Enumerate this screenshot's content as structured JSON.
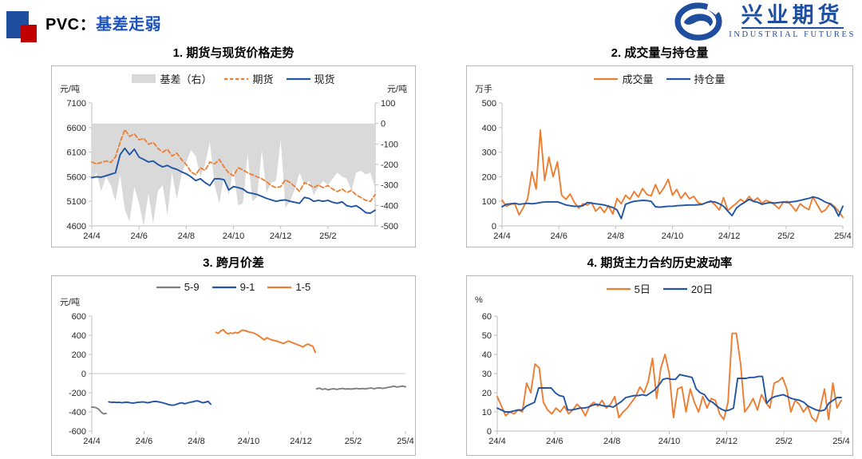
{
  "header": {
    "title_prefix": "PVC：",
    "title_highlight": "基差走弱"
  },
  "logo": {
    "company_cn": "兴业期货",
    "company_en": "INDUSTRIAL FUTURES"
  },
  "colors": {
    "orange": "#ED7D31",
    "blue": "#2155A4",
    "basis_area_gray": "#D9D9D9",
    "spread_gray": "#7F7F7F",
    "logo_blue": "#1F4E9E",
    "title_blue": "#1C53BD",
    "header_red": "#C00000",
    "axis_gray": "#BFBFBF"
  },
  "chart_data": [
    {
      "id": "price-trend",
      "type": "line-area",
      "title": "1. 期货与现货价格走势",
      "left_axis": {
        "unit": "元/吨",
        "min": 4600,
        "max": 7100,
        "ticks": [
          7100,
          6600,
          6100,
          5600,
          5100,
          4600
        ]
      },
      "right_axis": {
        "unit": "元/吨",
        "min": -500,
        "max": 100,
        "ticks": [
          100,
          0,
          -100,
          -200,
          -300,
          -400,
          -500
        ]
      },
      "x_axis": {
        "min": 0,
        "max": 12,
        "tick_positions": [
          0,
          2,
          4,
          6,
          8,
          10
        ],
        "labels": [
          "24/4",
          "24/6",
          "24/8",
          "24/10",
          "24/12",
          "25/2"
        ]
      },
      "series": [
        {
          "name": "基差（右）",
          "style": "area",
          "axis": "right",
          "color": "#D9D9D9",
          "segments": [
            {
              "x0": 0,
              "x1": 12,
              "y": [
                -280,
                -240,
                -330,
                -260,
                -300,
                -380,
                -250,
                -420,
                -480,
                -310,
                -390,
                -510,
                -340,
                -490,
                -330,
                -300,
                -450,
                -240,
                -370,
                -250,
                -190,
                -130,
                -160,
                -260,
                -200,
                -90,
                -300,
                -390,
                -260,
                -350,
                -220,
                -400,
                -390,
                -150,
                -380,
                -360,
                -130,
                -340,
                -290,
                -280,
                -80,
                -410,
                -380,
                -320,
                -240,
                -300,
                -280,
                -350,
                -310,
                -280,
                -300,
                -270,
                -240,
                -260,
                -270,
                -330,
                -240,
                -230,
                -250,
                -240,
                -320
              ]
            }
          ]
        },
        {
          "name": "期货",
          "style": "dashed",
          "axis": "left",
          "color": "#ED7D31",
          "segments": [
            {
              "x0": 0,
              "x1": 12,
              "y": [
                5900,
                5860,
                5890,
                5920,
                5890,
                6000,
                6300,
                6560,
                6420,
                6470,
                6350,
                6380,
                6260,
                6300,
                6180,
                6100,
                6160,
                6020,
                6080,
                5950,
                5850,
                5700,
                5640,
                5780,
                5730,
                5900,
                5860,
                5950,
                5800,
                5680,
                5620,
                5780,
                5740,
                5680,
                5640,
                5600,
                5560,
                5500,
                5420,
                5380,
                5400,
                5540,
                5480,
                5400,
                5300,
                5480,
                5440,
                5380,
                5430,
                5380,
                5420,
                5350,
                5300,
                5350,
                5280,
                5320,
                5230,
                5180,
                5120,
                5100,
                5240
              ]
            }
          ]
        },
        {
          "name": "现货",
          "style": "solid",
          "axis": "left",
          "color": "#2155A4",
          "segments": [
            {
              "x0": 0,
              "x1": 12,
              "y": [
                5580,
                5600,
                5590,
                5620,
                5650,
                5680,
                6050,
                6180,
                6050,
                6160,
                6000,
                5950,
                5900,
                5920,
                5850,
                5800,
                5830,
                5780,
                5750,
                5700,
                5660,
                5600,
                5520,
                5560,
                5480,
                5420,
                5560,
                5560,
                5540,
                5330,
                5400,
                5380,
                5350,
                5280,
                5260,
                5240,
                5200,
                5160,
                5130,
                5100,
                5120,
                5130,
                5100,
                5080,
                5060,
                5180,
                5160,
                5100,
                5120,
                5100,
                5120,
                5080,
                5060,
                5090,
                5010,
                4990,
                5010,
                4950,
                4870,
                4860,
                4920
              ]
            }
          ]
        }
      ]
    },
    {
      "id": "volume-open-interest",
      "type": "line",
      "title": "2. 成交量与持仓量",
      "left_axis": {
        "unit": "万手",
        "min": 0,
        "max": 500,
        "ticks": [
          500,
          400,
          300,
          200,
          100,
          0
        ]
      },
      "x_axis": {
        "min": 0,
        "max": 12,
        "tick_positions": [
          0,
          2,
          4,
          6,
          8,
          10,
          12
        ],
        "labels": [
          "24/4",
          "24/6",
          "24/8",
          "24/10",
          "24/12",
          "25/2",
          "25/4"
        ]
      },
      "series": [
        {
          "name": "成交量",
          "style": "solid",
          "axis": "left",
          "color": "#ED7D31",
          "segments": [
            {
              "x0": 0,
              "x1": 12,
              "y": [
                105,
                80,
                88,
                90,
                45,
                75,
                110,
                220,
                150,
                390,
                185,
                280,
                200,
                260,
                125,
                108,
                130,
                95,
                72,
                90,
                85,
                95,
                60,
                78,
                55,
                82,
                48,
                112,
                90,
                125,
                108,
                140,
                118,
                152,
                128,
                122,
                168,
                130,
                155,
                190,
                125,
                148,
                112,
                135,
                110,
                120,
                95,
                88,
                95,
                102,
                85,
                65,
                115,
                62,
                78,
                92,
                108,
                96,
                120,
                100,
                114,
                92,
                104,
                96,
                86,
                70,
                96,
                100,
                82,
                60,
                90,
                76,
                66,
                118,
                86,
                56,
                66,
                92,
                80,
                60,
                35
              ]
            }
          ]
        },
        {
          "name": "持仓量",
          "style": "solid",
          "axis": "left",
          "color": "#2155A4",
          "segments": [
            {
              "x0": 0,
              "x1": 12,
              "y": [
                78,
                88,
                90,
                92,
                88,
                90,
                92,
                90,
                92,
                95,
                97,
                98,
                97,
                98,
                92,
                85,
                82,
                80,
                80,
                82,
                95,
                93,
                90,
                88,
                85,
                80,
                75,
                65,
                30,
                88,
                95,
                100,
                102,
                104,
                103,
                100,
                78,
                76,
                78,
                80,
                80,
                82,
                83,
                84,
                85,
                85,
                86,
                88,
                95,
                99,
                97,
                90,
                80,
                60,
                42,
                72,
                86,
                96,
                108,
                100,
                96,
                88,
                92,
                95,
                93,
                95,
                97,
                95,
                98,
                100,
                104,
                108,
                112,
                118,
                114,
                106,
                96,
                90,
                74,
                40,
                80
              ]
            }
          ]
        }
      ]
    },
    {
      "id": "calendar-spread",
      "type": "line",
      "title": "3. 跨月价差",
      "zero_line": true,
      "left_axis": {
        "unit": "元/吨",
        "min": -600,
        "max": 600,
        "ticks": [
          600,
          400,
          200,
          0,
          -200,
          -400,
          -600
        ]
      },
      "x_axis": {
        "min": 0,
        "max": 12,
        "tick_positions": [
          0,
          2,
          4,
          6,
          8,
          10,
          12
        ],
        "labels": [
          "24/4",
          "24/6",
          "24/8",
          "24/10",
          "24/12",
          "25/2",
          "25/4"
        ]
      },
      "series": [
        {
          "name": "5-9",
          "style": "solid",
          "axis": "left",
          "color": "#7F7F7F",
          "segments": [
            {
              "x0": 0,
              "x1": 0.55,
              "y": [
                -350,
                -352,
                -358,
                -375,
                -405,
                -420,
                -415
              ]
            },
            {
              "x0": 8.6,
              "x1": 12,
              "y": [
                -160,
                -152,
                -165,
                -158,
                -170,
                -162,
                -158,
                -165,
                -160,
                -155,
                -162,
                -158,
                -162,
                -158,
                -155,
                -160,
                -156,
                -160,
                -155,
                -150,
                -158,
                -152,
                -148,
                -155,
                -150,
                -143,
                -138,
                -132,
                -140,
                -136,
                -130,
                -138
              ]
            }
          ]
        },
        {
          "name": "9-1",
          "style": "solid",
          "axis": "left",
          "color": "#2155A4",
          "segments": [
            {
              "x0": 0.65,
              "x1": 4.55,
              "y": [
                -295,
                -300,
                -298,
                -302,
                -300,
                -305,
                -300,
                -298,
                -303,
                -308,
                -305,
                -300,
                -298,
                -295,
                -300,
                -305,
                -298,
                -292,
                -290,
                -295,
                -300,
                -308,
                -315,
                -325,
                -330,
                -328,
                -320,
                -310,
                -305,
                -315,
                -308,
                -300,
                -295,
                -288,
                -285,
                -295,
                -305,
                -298,
                -290,
                -320
              ]
            }
          ]
        },
        {
          "name": "1-5",
          "style": "solid",
          "axis": "left",
          "color": "#ED7D31",
          "segments": [
            {
              "x0": 4.75,
              "x1": 8.55,
              "y": [
                430,
                420,
                445,
                460,
                430,
                415,
                425,
                418,
                430,
                422,
                440,
                455,
                448,
                440,
                432,
                428,
                420,
                405,
                388,
                368,
                352,
                375,
                362,
                352,
                345,
                340,
                332,
                322,
                315,
                330,
                340,
                328,
                318,
                308,
                298,
                288,
                278,
                298,
                308,
                295,
                285,
                222
              ]
            }
          ]
        }
      ]
    },
    {
      "id": "historical-volatility",
      "type": "line",
      "title": "4. 期货主力合约历史波动率",
      "left_axis": {
        "unit": "%",
        "min": 0,
        "max": 60,
        "ticks": [
          60,
          50,
          40,
          30,
          20,
          10,
          0
        ]
      },
      "x_axis": {
        "min": 0,
        "max": 12,
        "tick_positions": [
          0,
          2,
          4,
          6,
          8,
          10,
          12
        ],
        "labels": [
          "24/4",
          "24/6",
          "24/8",
          "24/10",
          "24/12",
          "25/2",
          "25/4"
        ]
      },
      "series": [
        {
          "name": "5日",
          "style": "solid",
          "axis": "left",
          "color": "#ED7D31",
          "segments": [
            {
              "x0": 0,
              "x1": 12,
              "y": [
                18,
                13,
                8,
                10,
                9,
                11,
                10,
                25,
                20,
                35,
                33,
                15,
                11,
                9,
                12,
                10,
                13,
                9,
                11,
                14,
                12,
                8,
                13,
                15,
                13,
                16,
                12,
                14,
                18,
                7,
                10,
                12,
                15,
                18,
                23,
                20,
                26,
                38,
                17,
                33,
                40,
                30,
                7,
                22,
                23,
                10,
                22,
                15,
                10,
                18,
                12,
                17,
                16,
                9,
                6,
                15,
                51,
                51,
                35,
                10,
                13,
                17,
                11,
                19,
                15,
                12,
                25,
                26,
                28,
                22,
                10,
                16,
                14,
                10,
                13,
                7,
                5,
                12,
                22,
                6,
                25,
                12,
                16
              ]
            }
          ]
        },
        {
          "name": "20日",
          "style": "solid",
          "axis": "left",
          "color": "#2155A4",
          "segments": [
            {
              "x0": 0,
              "x1": 12,
              "y": [
                12,
                11,
                10,
                10,
                10.5,
                11,
                11,
                13,
                14,
                15,
                22.5,
                22.5,
                22.5,
                22.5,
                20,
                18.5,
                18,
                11,
                11,
                11.5,
                12,
                12,
                12.5,
                13.5,
                14,
                13.5,
                13,
                13,
                12.5,
                14,
                15.5,
                17.5,
                18,
                18.5,
                18.5,
                19,
                18.5,
                20,
                21.5,
                24,
                27,
                27.5,
                27,
                27,
                29.5,
                29,
                28.5,
                28,
                22,
                20,
                19,
                16,
                15,
                13,
                11.5,
                10.5,
                11,
                12,
                27.5,
                27.5,
                27.5,
                28,
                28,
                28.5,
                28.5,
                14.5,
                17,
                18,
                18.5,
                19,
                18,
                17,
                16.5,
                16,
                15,
                13,
                12,
                11,
                10.5,
                11,
                14.5,
                16,
                17.5,
                17.5
              ]
            }
          ]
        }
      ]
    }
  ]
}
